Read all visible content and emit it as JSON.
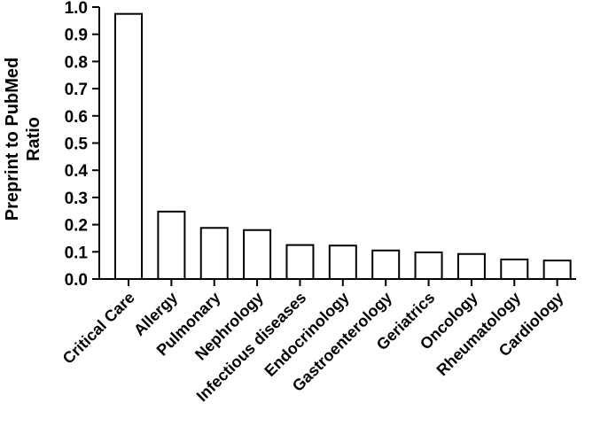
{
  "chart_data": {
    "type": "bar",
    "title": "",
    "xlabel": "",
    "ylabel": [
      "Preprint to PubMed",
      "Ratio"
    ],
    "ylim": [
      0,
      1.0
    ],
    "yticks": [
      "0.0",
      "0.1",
      "0.2",
      "0.3",
      "0.4",
      "0.5",
      "0.6",
      "0.7",
      "0.8",
      "0.9",
      "1.0"
    ],
    "categories": [
      "Critical Care",
      "Allergy",
      "Pulmonary",
      "Nephrology",
      "Infectious diseases",
      "Endocrinology",
      "Gastroenterology",
      "Geriatrics",
      "Oncology",
      "Rheumatology",
      "Cardiology"
    ],
    "values": [
      0.975,
      0.248,
      0.188,
      0.18,
      0.125,
      0.123,
      0.105,
      0.098,
      0.092,
      0.072,
      0.068
    ],
    "grid": false,
    "legend": "none",
    "bar_fill": "#ffffff",
    "bar_stroke": "#000000"
  }
}
